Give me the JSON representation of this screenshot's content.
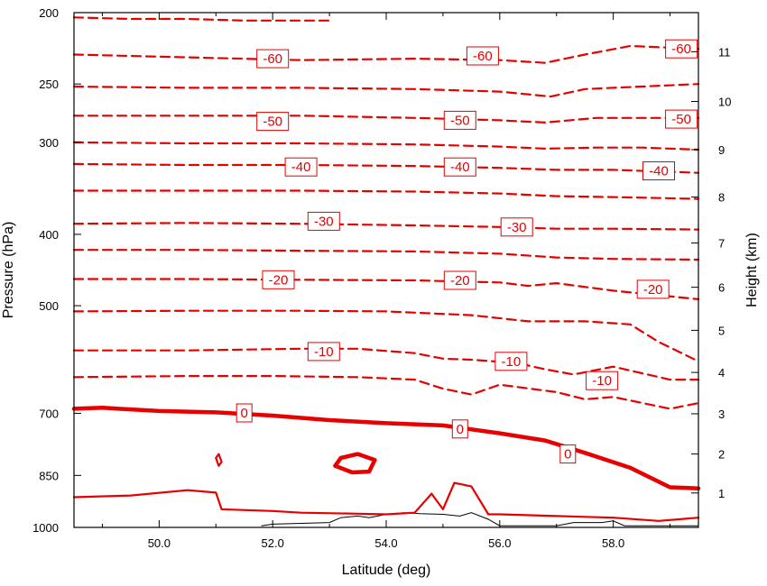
{
  "chart_data": {
    "type": "line",
    "title": "",
    "xlabel": "Latitude (deg)",
    "ylabel": "Pressure (hPa)",
    "ylabel_right": "Height (km)",
    "xlim": [
      48.5,
      59.5
    ],
    "x_ticks": [
      {
        "value": 50.0,
        "label": "50.0"
      },
      {
        "value": 52.0,
        "label": "52.0"
      },
      {
        "value": 54.0,
        "label": "54.0"
      },
      {
        "value": 56.0,
        "label": "56.0"
      },
      {
        "value": 58.0,
        "label": "58.0"
      }
    ],
    "y_scale": "log",
    "ylim": [
      1000,
      200
    ],
    "y_ticks": [
      {
        "value": 200,
        "label": "200"
      },
      {
        "value": 250,
        "label": "250"
      },
      {
        "value": 300,
        "label": "300"
      },
      {
        "value": 400,
        "label": "400"
      },
      {
        "value": 500,
        "label": "500"
      },
      {
        "value": 700,
        "label": "700"
      },
      {
        "value": 850,
        "label": "850"
      },
      {
        "value": 1000,
        "label": "1000"
      }
    ],
    "right_ticks": [
      {
        "pressure": 898,
        "label": "1"
      },
      {
        "pressure": 795,
        "label": "2"
      },
      {
        "pressure": 701,
        "label": "3"
      },
      {
        "pressure": 616,
        "label": "4"
      },
      {
        "pressure": 540,
        "label": "5"
      },
      {
        "pressure": 472,
        "label": "6"
      },
      {
        "pressure": 411,
        "label": "7"
      },
      {
        "pressure": 356,
        "label": "8"
      },
      {
        "pressure": 307,
        "label": "9"
      },
      {
        "pressure": 264,
        "label": "10"
      },
      {
        "pressure": 226,
        "label": "11"
      }
    ],
    "contour_color": "#e60000",
    "terrain_color": "#000000",
    "contours": [
      {
        "level": -65,
        "labeled": false,
        "x": [
          48.5,
          49.5,
          50.5,
          51.5,
          52.5,
          53.0
        ],
        "p": [
          203,
          204,
          204,
          205,
          205,
          205
        ]
      },
      {
        "level": -60,
        "labeled": true,
        "x": [
          48.5,
          50.5,
          52.5,
          54.5,
          56.0,
          56.8,
          57.5,
          58.3,
          59.5
        ],
        "p": [
          228,
          230,
          232,
          231,
          232,
          234,
          228,
          222,
          224
        ]
      },
      {
        "level": -55,
        "labeled": false,
        "x": [
          48.5,
          50.5,
          52.5,
          54.5,
          56.0,
          56.9,
          57.5,
          58.5,
          59.5
        ],
        "p": [
          252,
          253,
          253,
          254,
          256,
          260,
          254,
          252,
          250
        ]
      },
      {
        "level": -50,
        "labeled": true,
        "x": [
          48.5,
          50.5,
          52.5,
          54.5,
          56.0,
          56.8,
          57.7,
          58.5,
          59.5
        ],
        "p": [
          276,
          276,
          276,
          278,
          280,
          282,
          278,
          278,
          278
        ]
      },
      {
        "level": -45,
        "labeled": false,
        "x": [
          48.5,
          50.5,
          52.5,
          54.5,
          56.0,
          56.8,
          57.7,
          58.5,
          59.5
        ],
        "p": [
          300,
          301,
          301,
          302,
          304,
          306,
          305,
          305,
          307
        ]
      },
      {
        "level": -40,
        "labeled": true,
        "x": [
          48.5,
          50.5,
          52.5,
          54.5,
          56.0,
          57.0,
          58.0,
          59.5
        ],
        "p": [
          321,
          322,
          322,
          323,
          325,
          327,
          327,
          330
        ]
      },
      {
        "level": -35,
        "labeled": false,
        "x": [
          48.5,
          50.5,
          52.5,
          54.5,
          56.0,
          57.0,
          58.0,
          59.5
        ],
        "p": [
          349,
          349,
          349,
          350,
          352,
          355,
          356,
          358
        ]
      },
      {
        "level": -30,
        "labeled": true,
        "x": [
          48.5,
          50.5,
          52.5,
          54.5,
          56.0,
          57.0,
          58.0,
          59.5
        ],
        "p": [
          387,
          386,
          387,
          389,
          391,
          393,
          393,
          394
        ]
      },
      {
        "level": -25,
        "labeled": false,
        "x": [
          48.5,
          50.5,
          52.5,
          54.5,
          56.0,
          57.0,
          58.0,
          59.5
        ],
        "p": [
          420,
          420,
          421,
          422,
          425,
          430,
          432,
          433
        ]
      },
      {
        "level": -20,
        "labeled": true,
        "x": [
          48.5,
          50.5,
          52.5,
          54.5,
          56.0,
          56.5,
          57.0,
          58.0,
          59.5
        ],
        "p": [
          460,
          460,
          461,
          462,
          465,
          470,
          466,
          477,
          490
        ]
      },
      {
        "level": -15,
        "labeled": false,
        "x": [
          48.5,
          50.5,
          52.5,
          54.0,
          55.5,
          56.5,
          57.5,
          58.3,
          58.8,
          59.5
        ],
        "p": [
          509,
          508,
          508,
          509,
          515,
          525,
          525,
          530,
          560,
          595
        ]
      },
      {
        "level": -10,
        "labeled": true,
        "x": [
          48.5,
          50.5,
          52.5,
          53.5,
          54.5,
          55.0,
          55.5,
          56.3,
          56.8,
          57.3,
          58.0,
          59.0,
          59.5
        ],
        "p": [
          575,
          575,
          572,
          572,
          580,
          590,
          592,
          598,
          610,
          620,
          605,
          630,
          630
        ]
      },
      {
        "level": -5,
        "labeled": false,
        "x": [
          48.5,
          50.5,
          52.0,
          53.5,
          54.5,
          55.0,
          55.5,
          56.0,
          57.0,
          57.5,
          58.0,
          59.0,
          59.5
        ],
        "p": [
          625,
          623,
          623,
          625,
          630,
          648,
          660,
          640,
          655,
          670,
          665,
          690,
          678
        ]
      },
      {
        "level": 0,
        "labeled": true,
        "x": [
          48.5,
          49.0,
          50.0,
          51.0,
          52.0,
          53.0,
          54.0,
          55.0,
          56.0,
          56.8,
          57.5,
          58.3,
          59.0,
          59.5
        ],
        "p": [
          690,
          688,
          695,
          698,
          705,
          715,
          722,
          727,
          745,
          762,
          792,
          830,
          882,
          885
        ]
      },
      {
        "level": 5,
        "labeled": false,
        "x": [
          48.5,
          49.5,
          50.5,
          51.0,
          51.1,
          52.0,
          52.5,
          53.5,
          54.0,
          54.5,
          54.8,
          55.0,
          55.2,
          55.5,
          55.8,
          56.0,
          57.0,
          58.0,
          58.8,
          59.5
        ],
        "p": [
          910,
          905,
          890,
          897,
          945,
          950,
          955,
          958,
          960,
          955,
          900,
          945,
          870,
          880,
          960,
          960,
          965,
          970,
          980,
          970
        ]
      },
      {
        "level": 0,
        "labeled": false,
        "x": [
          53.1,
          53.2,
          53.5,
          53.8,
          53.7,
          53.4,
          53.1
        ],
        "p": [
          825,
          805,
          795,
          810,
          840,
          842,
          825
        ]
      },
      {
        "level": 5,
        "labeled": false,
        "x": [
          51.0,
          51.05,
          51.1,
          51.05,
          51.0
        ],
        "p": [
          805,
          795,
          815,
          825,
          805
        ]
      }
    ],
    "terrain": {
      "x": [
        51.8,
        52.0,
        53.0,
        53.2,
        53.5,
        53.7,
        54.0,
        54.3,
        54.6,
        55.0,
        55.3,
        55.5,
        55.8,
        56.0,
        57.0,
        57.3,
        57.8,
        58.0,
        58.2,
        59.5
      ],
      "p": [
        995,
        990,
        985,
        970,
        965,
        970,
        960,
        955,
        958,
        960,
        965,
        955,
        975,
        995,
        995,
        985,
        985,
        980,
        995,
        995
      ]
    },
    "labels": [
      {
        "text": "-60",
        "x": 52.0,
        "p": 231
      },
      {
        "text": "-60",
        "x": 55.7,
        "p": 229
      },
      {
        "text": "-60",
        "x": 59.2,
        "p": 224
      },
      {
        "text": "-50",
        "x": 52.0,
        "p": 281
      },
      {
        "text": "-50",
        "x": 55.3,
        "p": 280
      },
      {
        "text": "-50",
        "x": 59.2,
        "p": 279
      },
      {
        "text": "-40",
        "x": 52.5,
        "p": 324
      },
      {
        "text": "-40",
        "x": 55.3,
        "p": 324
      },
      {
        "text": "-40",
        "x": 58.8,
        "p": 328
      },
      {
        "text": "-30",
        "x": 52.9,
        "p": 384
      },
      {
        "text": "-30",
        "x": 56.3,
        "p": 391
      },
      {
        "text": "-20",
        "x": 52.1,
        "p": 461
      },
      {
        "text": "-20",
        "x": 55.3,
        "p": 462
      },
      {
        "text": "-20",
        "x": 58.7,
        "p": 475
      },
      {
        "text": "-10",
        "x": 52.9,
        "p": 577
      },
      {
        "text": "-10",
        "x": 56.2,
        "p": 595
      },
      {
        "text": "-10",
        "x": 57.8,
        "p": 632
      },
      {
        "text": "0",
        "x": 51.5,
        "p": 699
      },
      {
        "text": "0",
        "x": 55.3,
        "p": 735
      },
      {
        "text": "0",
        "x": 57.2,
        "p": 795
      }
    ]
  }
}
